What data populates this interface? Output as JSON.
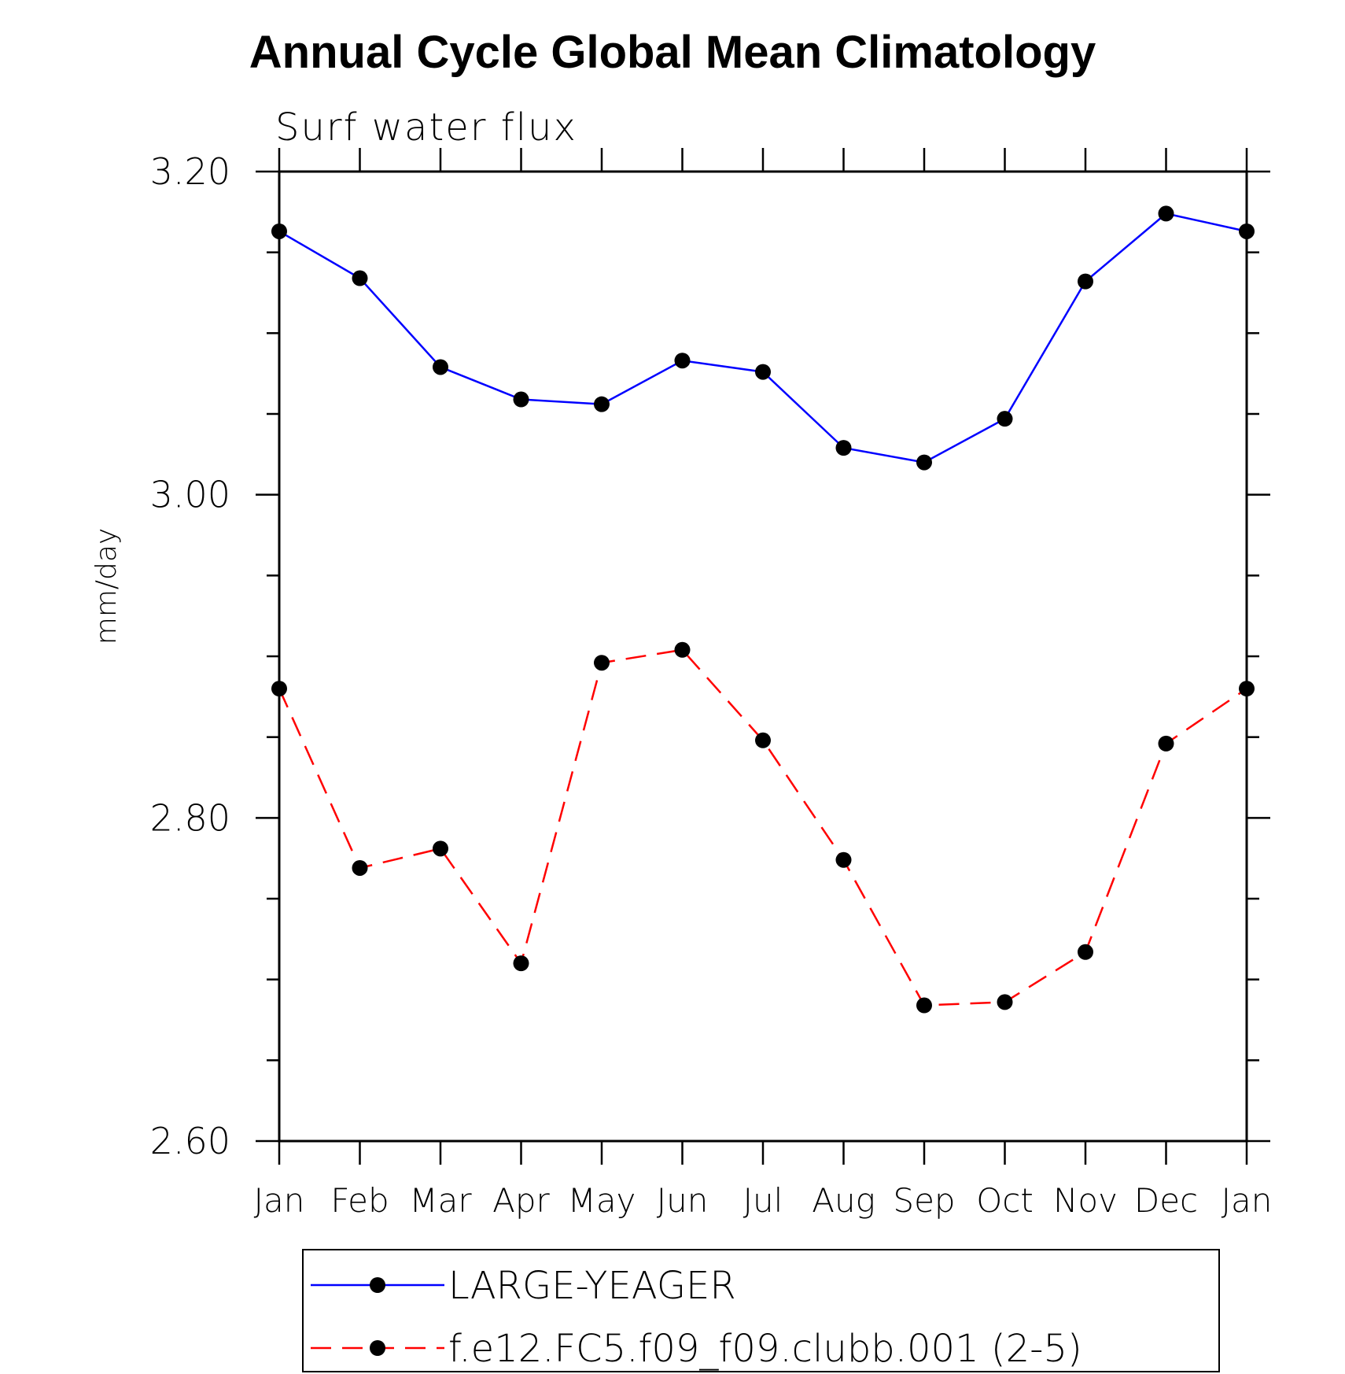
{
  "chart_data": {
    "type": "line",
    "title": "Annual Cycle Global Mean Climatology",
    "subtitle": "Surf water flux",
    "ylabel": "mm/day",
    "xlabel": "",
    "categories": [
      "Jan",
      "Feb",
      "Mar",
      "Apr",
      "May",
      "Jun",
      "Jul",
      "Aug",
      "Sep",
      "Oct",
      "Nov",
      "Dec",
      "Jan"
    ],
    "ylim": [
      2.6,
      3.2
    ],
    "yticks": [
      "2.60",
      "2.80",
      "3.00",
      "3.20"
    ],
    "grid": false,
    "legend_position": "bottom",
    "series": [
      {
        "name": "LARGE-YEAGER",
        "color": "#0000ff",
        "dash": "solid",
        "values": [
          3.163,
          3.134,
          3.079,
          3.059,
          3.056,
          3.083,
          3.076,
          3.029,
          3.02,
          3.047,
          3.132,
          3.174,
          3.163
        ]
      },
      {
        "name": "f.e12.FC5.f09_f09.clubb.001 (2-5)",
        "color": "#ff0000",
        "dash": "dashed",
        "values": [
          2.88,
          2.769,
          2.781,
          2.71,
          2.896,
          2.904,
          2.848,
          2.774,
          2.684,
          2.686,
          2.717,
          2.846,
          2.88
        ]
      }
    ]
  }
}
